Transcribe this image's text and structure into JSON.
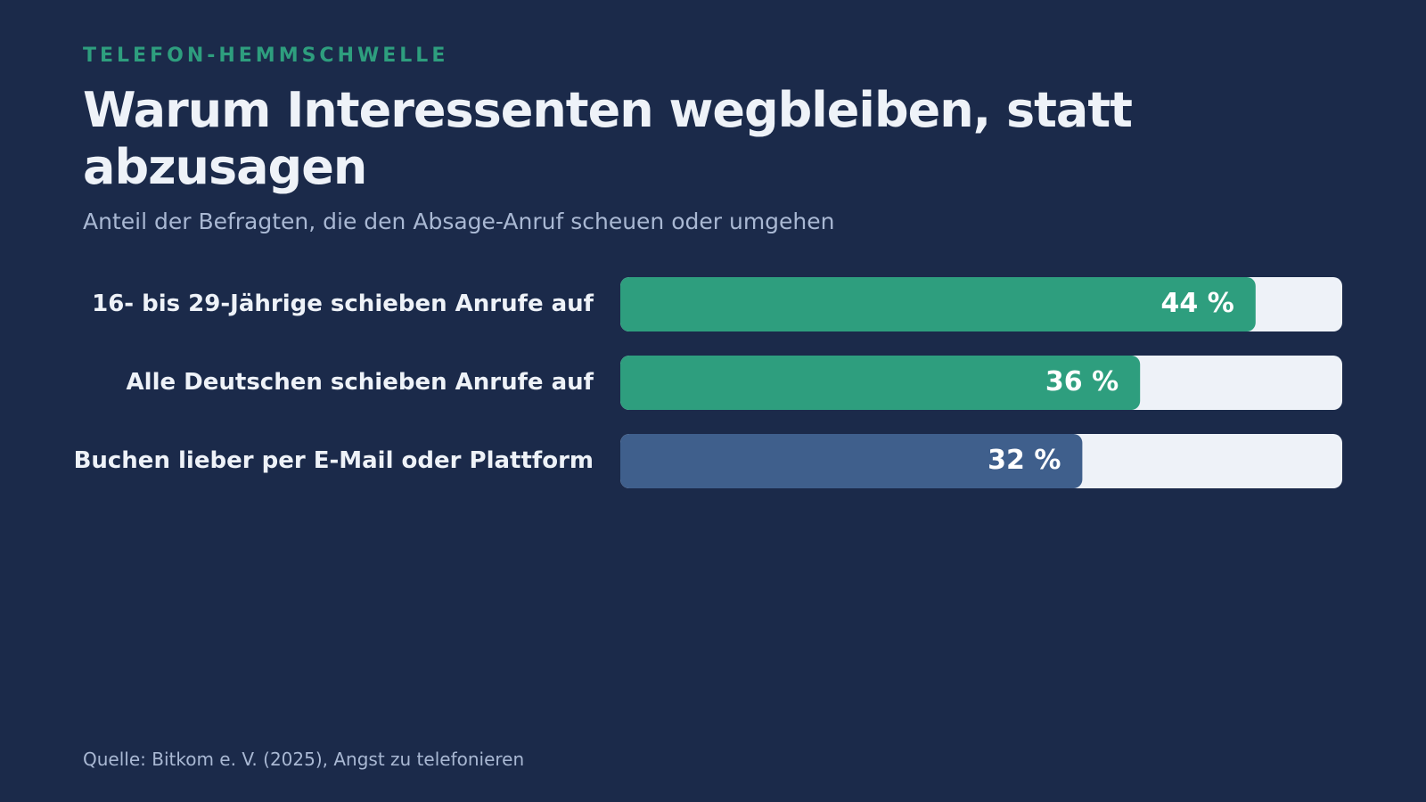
{
  "kicker": "TELEFON-HEMMSCHWELLE",
  "source": "Quelle: Bitkom e. V. (2025), Angst zu telefonieren",
  "chart_data": {
    "type": "bar",
    "orientation": "horizontal",
    "title": "Warum Interessenten wegbleiben, statt abzusagen",
    "subtitle": "Anteil der Befragten, die den Absage-Anruf scheuen oder umgehen",
    "categories": [
      "16- bis 29-Jährige schieben Anrufe auf",
      "Alle Deutschen schieben Anrufe auf",
      "Buchen lieber per E-Mail oder Plattform"
    ],
    "values": [
      44,
      36,
      32
    ],
    "value_labels": [
      "44 %",
      "36 %",
      "32 %"
    ],
    "colors": [
      "#2e9e7e",
      "#2e9e7e",
      "#3f5f8c"
    ],
    "track_color": "#eef2f8",
    "xlim": [
      0,
      50
    ]
  }
}
